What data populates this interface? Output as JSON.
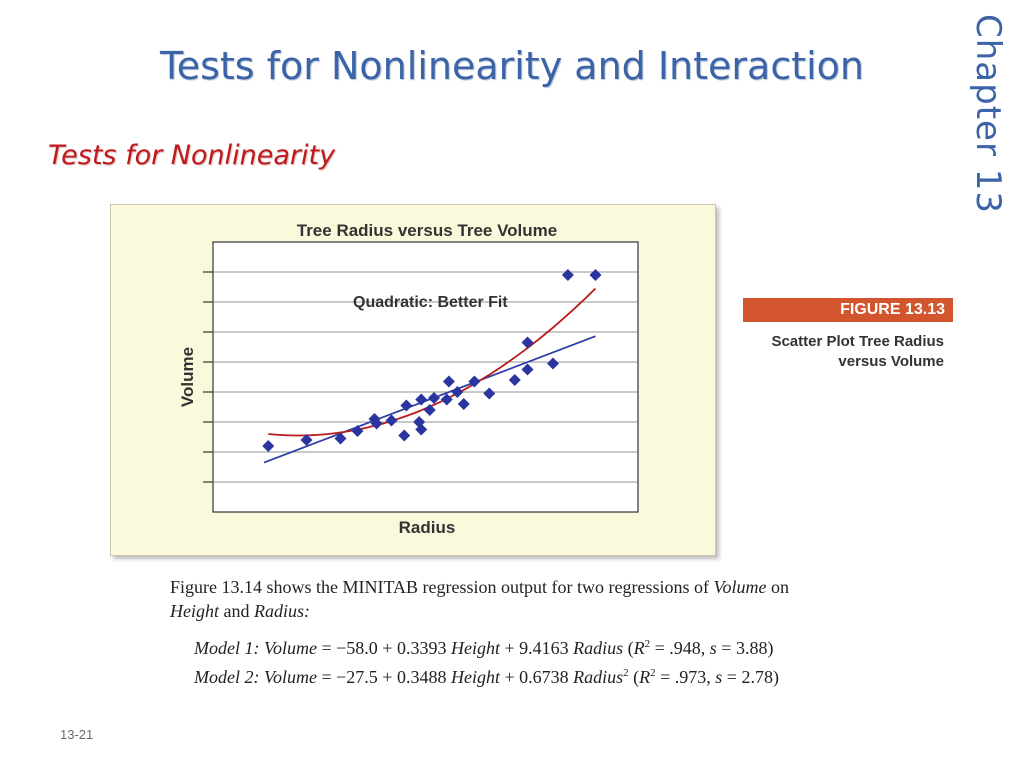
{
  "slide": {
    "title": "Tests for Nonlinearity and Interaction",
    "chapter_label": "Chapter  13",
    "subtitle": "Tests for Nonlinearity",
    "figure_number": "FIGURE 13.13",
    "figure_caption_line1": "Scatter Plot Tree Radius",
    "figure_caption_line2": "versus Volume",
    "body_line1_a": "Figure 13.14 shows the MINITAB regression output for two regressions of ",
    "body_line1_b": "Volume",
    "body_line1_c": " on",
    "body_line2_a": "Height",
    "body_line2_b": " and ",
    "body_line2_c": "Radius:",
    "model1": {
      "label": "Model 1:",
      "lhs": "Volume",
      "eq1": " = −58.0 + 0.3393 ",
      "v1": "Height",
      "eq2": " + 9.4163 ",
      "v2": "Radius",
      "stats_open": " (",
      "r2": "R",
      "exp": "2",
      "stats": " = .948, ",
      "s": "s",
      "s_val": " = 3.88)"
    },
    "model2": {
      "label": "Model 2:",
      "lhs": "Volume",
      "eq1": " = −27.5 + 0.3488 ",
      "v1": "Height",
      "eq2": " + 0.6738 ",
      "v2": "Radius",
      "sq": "2",
      "stats_open": " (",
      "r2": "R",
      "exp": "2",
      "stats": " = .973, ",
      "s": "s",
      "s_val": " = 2.78)"
    },
    "page_number": "13-21"
  },
  "chart_data": {
    "type": "scatter",
    "title": "Tree Radius versus Tree Volume",
    "xlabel": "Radius",
    "ylabel": "Volume",
    "annotation": "Quadratic: Better Fit",
    "xlim": [
      0,
      10
    ],
    "ylim": [
      0,
      9
    ],
    "grid": true,
    "points": [
      {
        "x": 1.3,
        "y": 2.2
      },
      {
        "x": 2.2,
        "y": 2.4
      },
      {
        "x": 3.0,
        "y": 2.45
      },
      {
        "x": 3.4,
        "y": 2.7
      },
      {
        "x": 3.8,
        "y": 3.1
      },
      {
        "x": 3.85,
        "y": 2.95
      },
      {
        "x": 4.2,
        "y": 3.05
      },
      {
        "x": 4.5,
        "y": 2.55
      },
      {
        "x": 4.55,
        "y": 3.55
      },
      {
        "x": 4.85,
        "y": 3.0
      },
      {
        "x": 4.9,
        "y": 2.75
      },
      {
        "x": 4.9,
        "y": 3.75
      },
      {
        "x": 5.1,
        "y": 3.4
      },
      {
        "x": 5.2,
        "y": 3.8
      },
      {
        "x": 5.5,
        "y": 3.75
      },
      {
        "x": 5.55,
        "y": 4.35
      },
      {
        "x": 5.75,
        "y": 4.0
      },
      {
        "x": 5.9,
        "y": 3.6
      },
      {
        "x": 6.15,
        "y": 4.35
      },
      {
        "x": 6.5,
        "y": 3.95
      },
      {
        "x": 7.1,
        "y": 4.4
      },
      {
        "x": 7.4,
        "y": 4.75
      },
      {
        "x": 7.4,
        "y": 5.65
      },
      {
        "x": 8.0,
        "y": 4.95
      },
      {
        "x": 8.35,
        "y": 7.9
      },
      {
        "x": 9.0,
        "y": 7.9
      }
    ],
    "series": [
      {
        "kind": "linear-fit",
        "color": "#2e3fa6",
        "intercept": 1.0,
        "slope": 0.54
      },
      {
        "kind": "quadratic-fit",
        "color": "#b81c1c",
        "a": 0.1,
        "b": -0.4,
        "c": 2.95
      }
    ],
    "point_color": "#2a35a0",
    "grid_lines_y": [
      1,
      2,
      3,
      4,
      5,
      6,
      7,
      8
    ]
  }
}
